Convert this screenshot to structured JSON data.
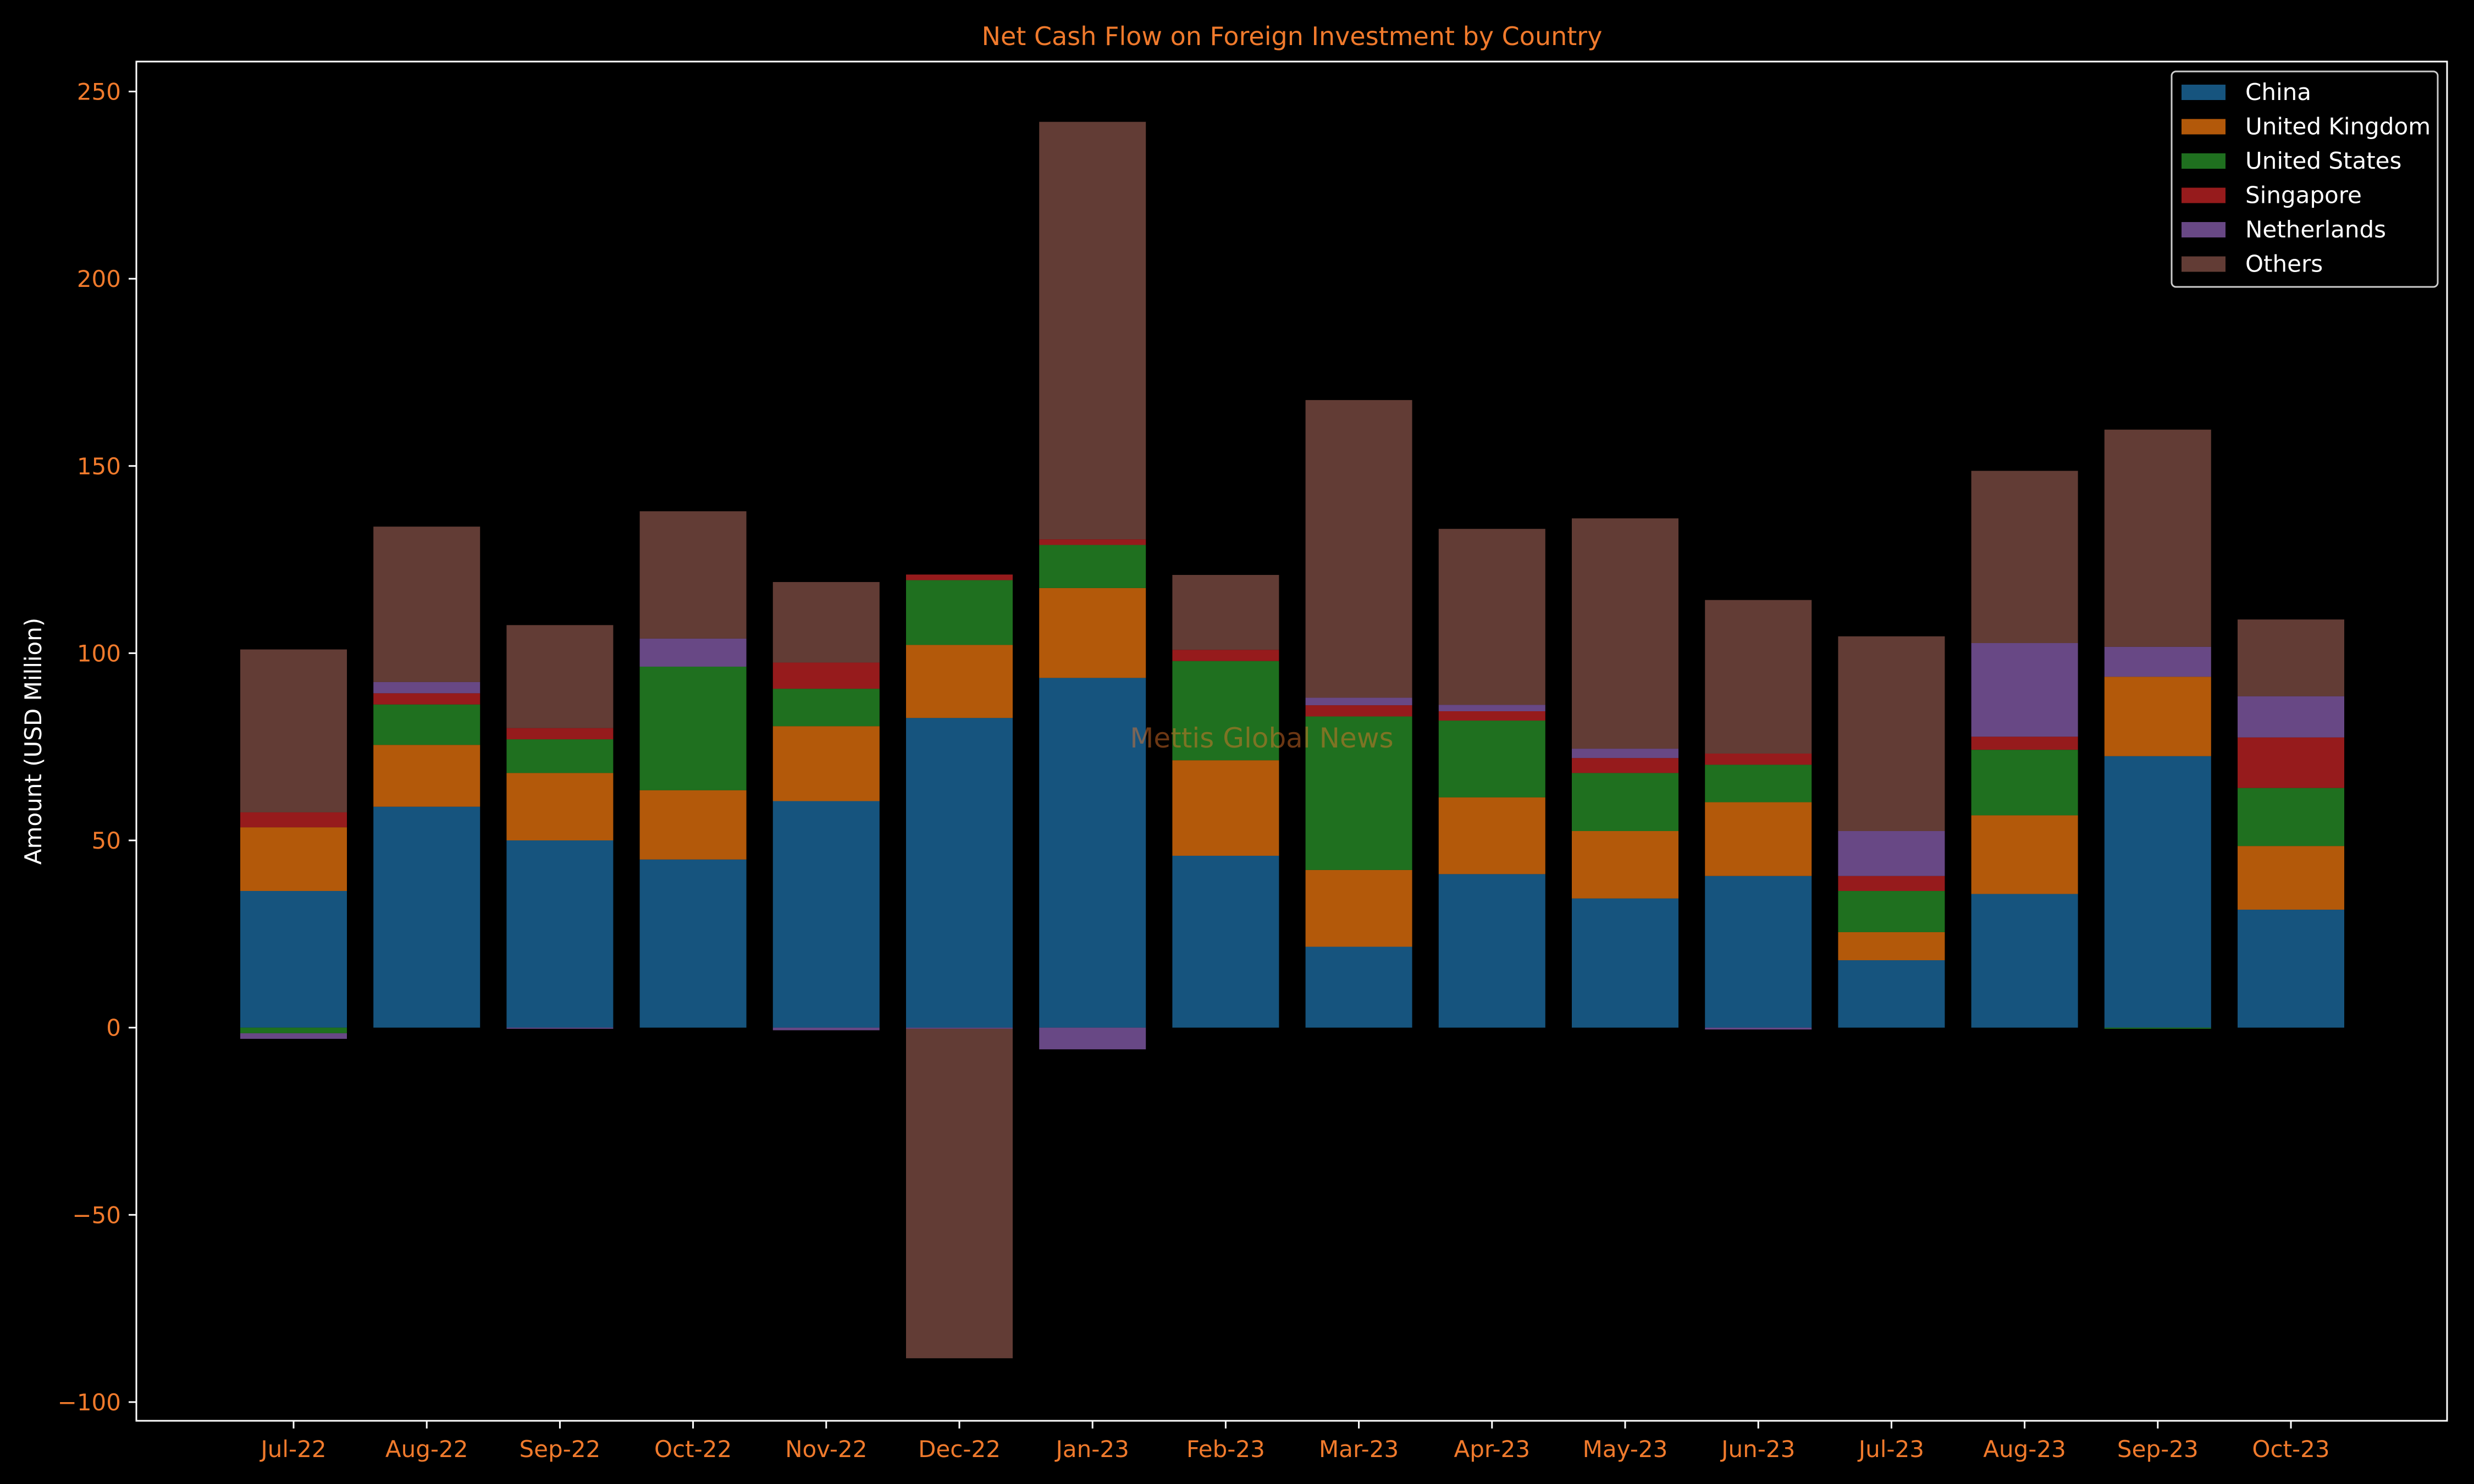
{
  "chart_data": {
    "type": "bar",
    "stacked": true,
    "title": "Net Cash Flow on Foreign Investment by Country",
    "xlabel": "",
    "ylabel": "Amount (USD Million)",
    "ylim": [
      -105,
      258
    ],
    "yticks": [
      -100,
      -50,
      0,
      50,
      100,
      150,
      200,
      250
    ],
    "ytick_labels": [
      "−100",
      "−50",
      "0",
      "50",
      "100",
      "150",
      "200",
      "250"
    ],
    "categories": [
      "Jul-22",
      "Aug-22",
      "Sep-22",
      "Oct-22",
      "Nov-22",
      "Dec-22",
      "Jan-23",
      "Feb-23",
      "Mar-23",
      "Apr-23",
      "May-23",
      "Jun-23",
      "Jul-23",
      "Aug-23",
      "Sep-23",
      "Oct-23"
    ],
    "series": [
      {
        "name": "China",
        "color": "#1f77b4",
        "values": [
          36.5,
          59.0,
          50.0,
          44.9,
          60.5,
          82.7,
          93.4,
          45.9,
          21.6,
          41.0,
          34.5,
          40.5,
          18.0,
          35.7,
          72.5,
          31.5
        ]
      },
      {
        "name": "United Kingdom",
        "color": "#ff7f0e",
        "values": [
          17.0,
          16.5,
          18.0,
          18.5,
          20.0,
          19.5,
          24.0,
          25.5,
          20.5,
          20.5,
          18.0,
          19.7,
          7.5,
          21.0,
          21.2,
          17.0
        ]
      },
      {
        "name": "United States",
        "color": "#2ca02c",
        "values": [
          -1.5,
          10.8,
          9.0,
          33.0,
          10.0,
          17.3,
          11.5,
          26.5,
          41.0,
          20.5,
          15.5,
          10.0,
          11.0,
          17.5,
          -0.3,
          15.5
        ]
      },
      {
        "name": "Singapore",
        "color": "#d62728",
        "values": [
          4.0,
          3.0,
          3.0,
          0.0,
          7.0,
          1.5,
          1.5,
          3.0,
          3.0,
          2.5,
          4.0,
          3.0,
          4.0,
          3.5,
          0.0,
          13.5
        ]
      },
      {
        "name": "Netherlands",
        "color": "#9467bd",
        "values": [
          -1.5,
          3.0,
          -0.3,
          7.5,
          -0.7,
          -0.3,
          -5.8,
          0.0,
          2.0,
          1.7,
          2.5,
          -0.5,
          12.0,
          25.0,
          8.0,
          11.0
        ]
      },
      {
        "name": "Others",
        "color": "#8c564b",
        "values": [
          43.5,
          41.5,
          27.5,
          34.0,
          21.5,
          -88.0,
          111.5,
          20.0,
          79.5,
          47.0,
          61.5,
          41.0,
          52.0,
          46.0,
          58.0,
          20.5
        ]
      }
    ],
    "legend_position": "top-right",
    "grid": false,
    "watermark": "Mettis Global News"
  },
  "style": {
    "background": "#000000",
    "text_color": "#f07a2c",
    "label_color": "#ffffff",
    "spine_color": "#ffffff",
    "bar_opacity": 0.7
  }
}
